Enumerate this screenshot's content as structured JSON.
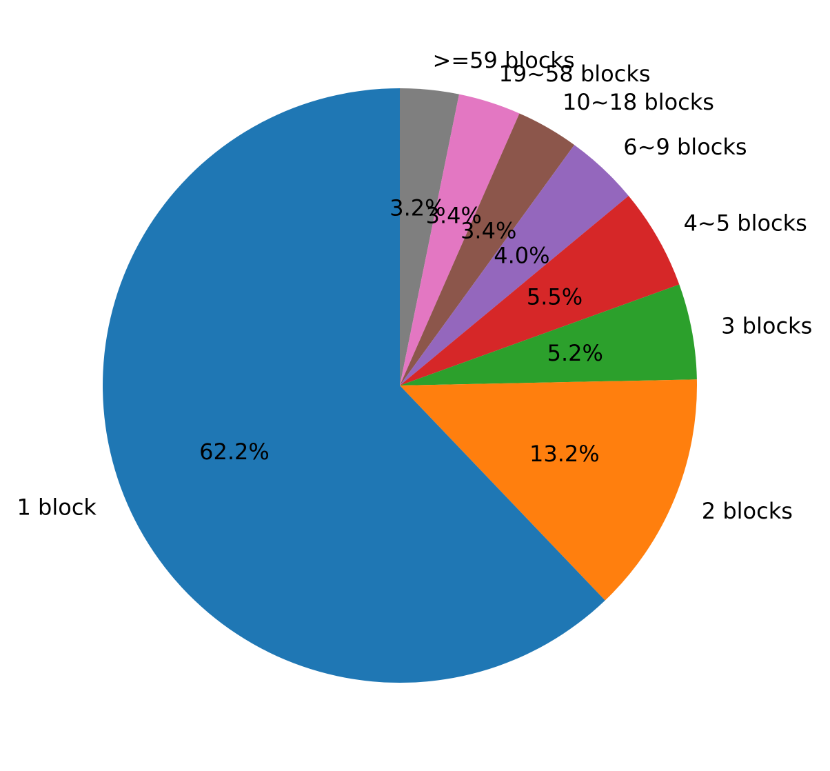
{
  "chart_data": {
    "type": "pie",
    "start_angle": 90,
    "direction": "clockwise",
    "slices": [
      {
        "label": ">=59 blocks",
        "pct_text": "3.2%",
        "value": 3.2,
        "color": "#7f7f7f"
      },
      {
        "label": "19~58 blocks",
        "pct_text": "3.4%",
        "value": 3.4,
        "color": "#e377c2"
      },
      {
        "label": "10~18 blocks",
        "pct_text": "3.4%",
        "value": 3.4,
        "color": "#8c564b"
      },
      {
        "label": "6~9 blocks",
        "pct_text": "4.0%",
        "value": 4.0,
        "color": "#9467bd"
      },
      {
        "label": "4~5 blocks",
        "pct_text": "5.5%",
        "value": 5.5,
        "color": "#d62728"
      },
      {
        "label": "3 blocks",
        "pct_text": "5.2%",
        "value": 5.2,
        "color": "#2ca02c"
      },
      {
        "label": "2 blocks",
        "pct_text": "13.2%",
        "value": 13.2,
        "color": "#ff7f0e"
      },
      {
        "label": "1 block",
        "pct_text": "62.2%",
        "value": 62.2,
        "color": "#1f77b4"
      }
    ]
  }
}
